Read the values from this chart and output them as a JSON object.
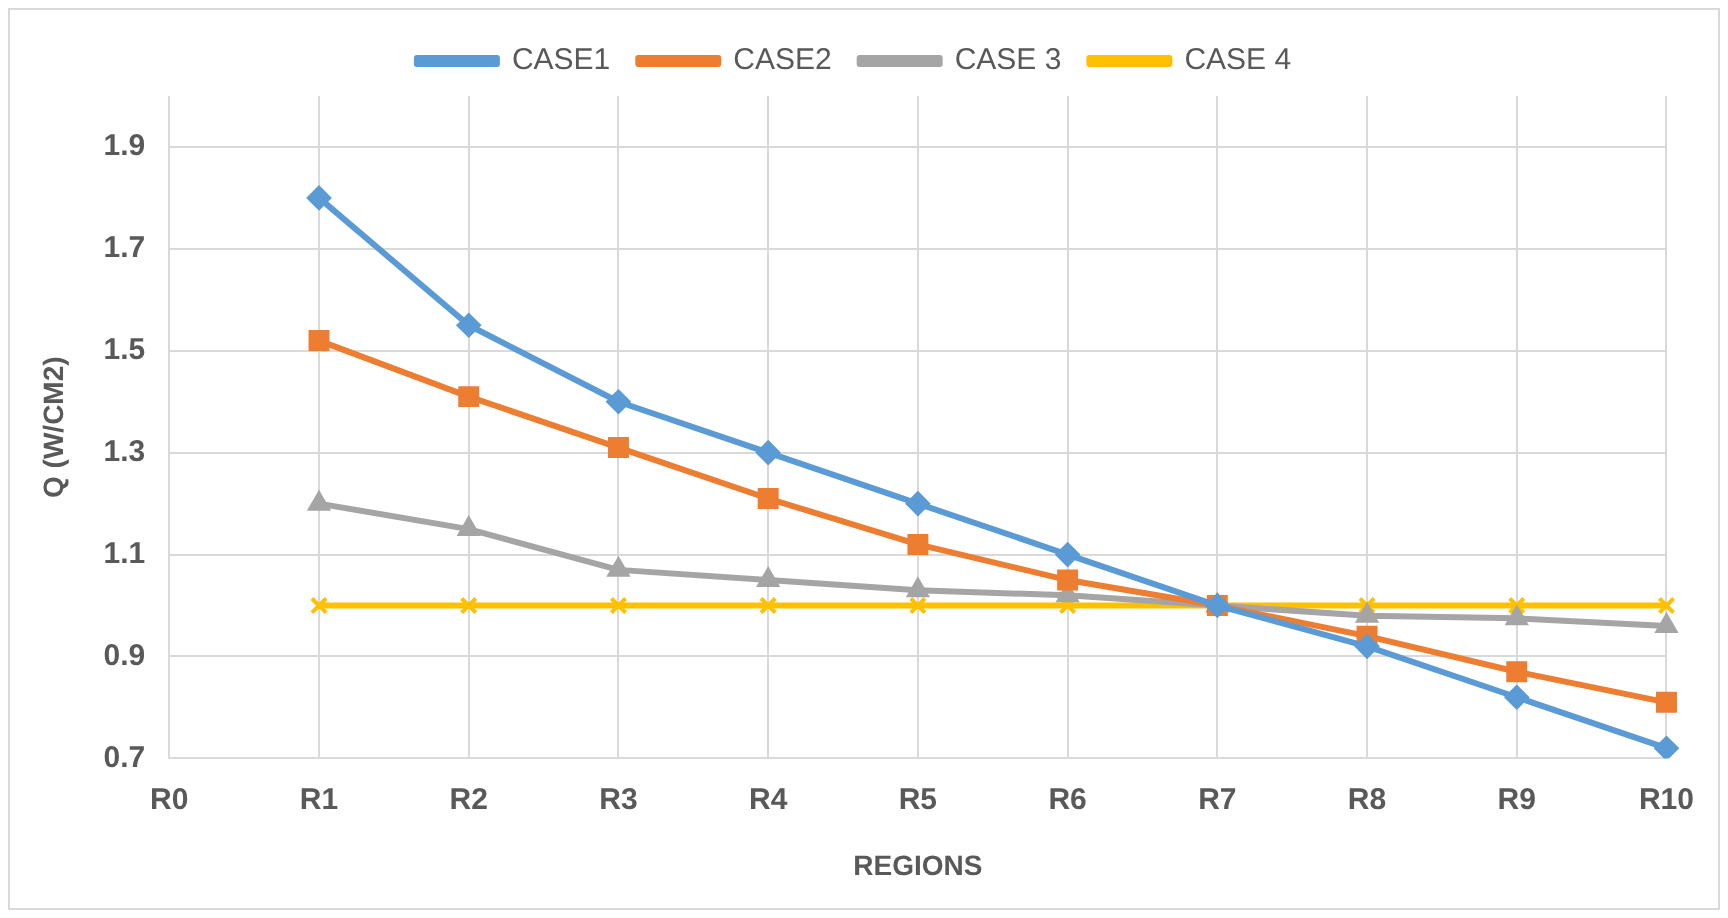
{
  "chart_data": {
    "type": "line",
    "xlabel": "REGIONS",
    "ylabel": "Q (W/CM2)",
    "categories": [
      "R0",
      "R1",
      "R2",
      "R3",
      "R4",
      "R5",
      "R6",
      "R7",
      "R8",
      "R9",
      "R10"
    ],
    "series": [
      {
        "name": "CASE1",
        "color": "#5b9bd5",
        "marker": "diamond",
        "values": [
          null,
          1.8,
          1.55,
          1.4,
          1.3,
          1.2,
          1.1,
          1.0,
          0.92,
          0.82,
          0.72
        ]
      },
      {
        "name": "CASE2",
        "color": "#ed7d31",
        "marker": "square",
        "values": [
          null,
          1.52,
          1.41,
          1.31,
          1.21,
          1.12,
          1.05,
          1.0,
          0.94,
          0.87,
          0.81
        ]
      },
      {
        "name": "CASE 3",
        "color": "#a5a5a5",
        "marker": "triangle",
        "values": [
          null,
          1.2,
          1.15,
          1.07,
          1.05,
          1.03,
          1.02,
          1.0,
          0.98,
          0.975,
          0.96
        ]
      },
      {
        "name": "CASE 4",
        "color": "#ffc000",
        "marker": "cross",
        "values": [
          null,
          1.0,
          1.0,
          1.0,
          1.0,
          1.0,
          1.0,
          1.0,
          1.0,
          1.0,
          1.0
        ]
      }
    ],
    "ylim": [
      0.7,
      2.0
    ],
    "yticks": [
      0.7,
      0.9,
      1.1,
      1.3,
      1.5,
      1.7,
      1.9
    ],
    "grid": true,
    "legend": "top"
  }
}
